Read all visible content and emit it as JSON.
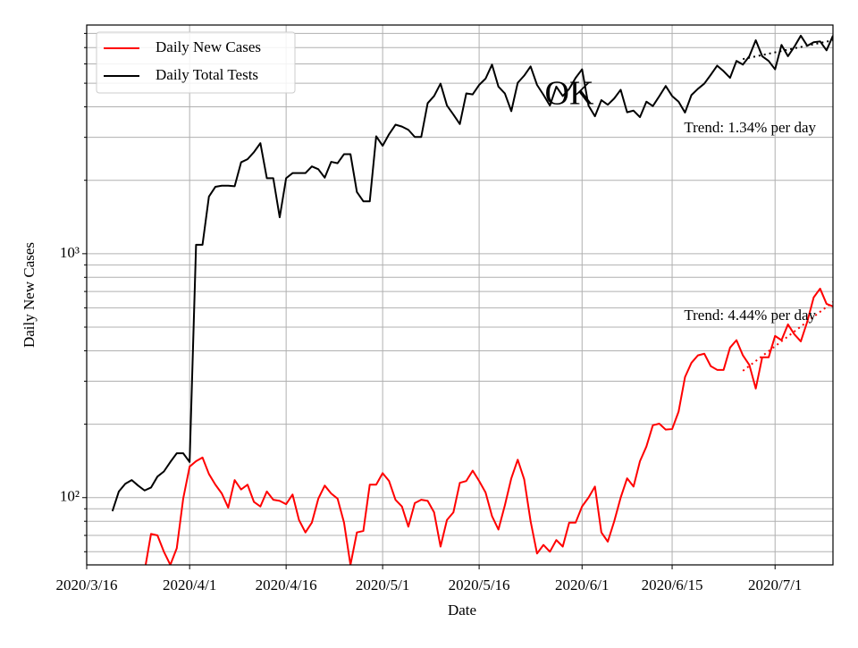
{
  "chart_data": {
    "type": "line",
    "title": "OK",
    "xlabel": "Date",
    "ylabel": "Daily New Cases",
    "yscale": "log",
    "grid": true,
    "legend_loc": "upper left",
    "xlim": [
      "2020/3/16",
      "2020/7/10"
    ],
    "xticks": [
      "2020/3/16",
      "2020/4/1",
      "2020/4/16",
      "2020/5/1",
      "2020/5/16",
      "2020/6/1",
      "2020/6/15",
      "2020/7/1"
    ],
    "ylim": [
      53,
      8660
    ],
    "yticks": [
      {
        "value": 100,
        "label": "10²"
      },
      {
        "value": 1000,
        "label": "10³"
      }
    ],
    "yticks_minor": [
      60,
      70,
      80,
      90,
      200,
      300,
      400,
      500,
      600,
      700,
      800,
      900,
      2000,
      3000,
      4000,
      5000,
      6000,
      7000,
      8000
    ],
    "x": [
      "2020/3/20",
      "2020/3/21",
      "2020/3/22",
      "2020/3/23",
      "2020/3/24",
      "2020/3/25",
      "2020/3/26",
      "2020/3/27",
      "2020/3/28",
      "2020/3/29",
      "2020/3/30",
      "2020/3/31",
      "2020/4/1",
      "2020/4/2",
      "2020/4/3",
      "2020/4/4",
      "2020/4/5",
      "2020/4/6",
      "2020/4/7",
      "2020/4/8",
      "2020/4/9",
      "2020/4/10",
      "2020/4/11",
      "2020/4/12",
      "2020/4/13",
      "2020/4/14",
      "2020/4/15",
      "2020/4/16",
      "2020/4/17",
      "2020/4/18",
      "2020/4/19",
      "2020/4/20",
      "2020/4/21",
      "2020/4/22",
      "2020/4/23",
      "2020/4/24",
      "2020/4/25",
      "2020/4/26",
      "2020/4/27",
      "2020/4/28",
      "2020/4/29",
      "2020/4/30",
      "2020/5/1",
      "2020/5/2",
      "2020/5/3",
      "2020/5/4",
      "2020/5/5",
      "2020/5/6",
      "2020/5/7",
      "2020/5/8",
      "2020/5/9",
      "2020/5/10",
      "2020/5/11",
      "2020/5/12",
      "2020/5/13",
      "2020/5/14",
      "2020/5/15",
      "2020/5/16",
      "2020/5/17",
      "2020/5/18",
      "2020/5/19",
      "2020/5/20",
      "2020/5/21",
      "2020/5/22",
      "2020/5/23",
      "2020/5/24",
      "2020/5/25",
      "2020/5/26",
      "2020/5/27",
      "2020/5/28",
      "2020/5/29",
      "2020/5/30",
      "2020/5/31",
      "2020/6/1",
      "2020/6/2",
      "2020/6/3",
      "2020/6/4",
      "2020/6/5",
      "2020/6/6",
      "2020/6/7",
      "2020/6/8",
      "2020/6/9",
      "2020/6/10",
      "2020/6/11",
      "2020/6/12",
      "2020/6/13",
      "2020/6/14",
      "2020/6/15",
      "2020/6/16",
      "2020/6/17",
      "2020/6/18",
      "2020/6/19",
      "2020/6/20",
      "2020/6/21",
      "2020/6/22",
      "2020/6/23",
      "2020/6/24",
      "2020/6/25",
      "2020/6/26",
      "2020/6/27",
      "2020/6/28",
      "2020/6/29",
      "2020/6/30",
      "2020/7/1",
      "2020/7/2",
      "2020/7/3",
      "2020/7/4",
      "2020/7/5",
      "2020/7/6",
      "2020/7/7",
      "2020/7/8",
      "2020/7/9",
      "2020/7/10"
    ],
    "series": [
      {
        "name": "Daily New Cases",
        "color": "#ff0000",
        "values": [
          null,
          null,
          null,
          null,
          null,
          50,
          71,
          70,
          60,
          53,
          62,
          99,
          134,
          141,
          146,
          125,
          113,
          104,
          91,
          118,
          108,
          113,
          96,
          92,
          106,
          98,
          97,
          94,
          103,
          81,
          72,
          79,
          99,
          112,
          104,
          99,
          79,
          53,
          72,
          73,
          113,
          113,
          126,
          117,
          98,
          92,
          76,
          95,
          98,
          97,
          87,
          63,
          81,
          87,
          115,
          117,
          129,
          117,
          105,
          84,
          74,
          93,
          120,
          143,
          119,
          80,
          59,
          64,
          60,
          67,
          63,
          79,
          79,
          92,
          100,
          111,
          72,
          66,
          80,
          100,
          120,
          111,
          141,
          162,
          198,
          201,
          190,
          191,
          225,
          312,
          357,
          383,
          389,
          346,
          334,
          334,
          412,
          442,
          383,
          350,
          280,
          376,
          376,
          460,
          442,
          513,
          467,
          437,
          526,
          662,
          719,
          623,
          608
        ]
      },
      {
        "name": "Daily Total Tests",
        "color": "#000000",
        "values": [
          88,
          106,
          114,
          118,
          112,
          107,
          110,
          122,
          128,
          140,
          152,
          152,
          140,
          1088,
          1088,
          1715,
          1880,
          1900,
          1900,
          1890,
          2370,
          2440,
          2610,
          2840,
          2040,
          2040,
          1410,
          2040,
          2140,
          2140,
          2140,
          2280,
          2220,
          2050,
          2380,
          2350,
          2560,
          2560,
          1790,
          1640,
          1640,
          3030,
          2770,
          3090,
          3380,
          3320,
          3220,
          3010,
          3010,
          4140,
          4430,
          4980,
          4050,
          3720,
          3400,
          4540,
          4500,
          4920,
          5220,
          5960,
          4840,
          4540,
          3840,
          5020,
          5370,
          5860,
          4920,
          4480,
          4050,
          4840,
          4430,
          4740,
          5260,
          5700,
          4050,
          3660,
          4260,
          4080,
          4330,
          4700,
          3800,
          3860,
          3630,
          4200,
          4030,
          4420,
          4870,
          4430,
          4200,
          3790,
          4470,
          4740,
          4980,
          5410,
          5900,
          5600,
          5260,
          6170,
          5960,
          6450,
          7500,
          6450,
          6170,
          5700,
          7180,
          6450,
          7060,
          7830,
          7120,
          7360,
          7420,
          6820,
          7830
        ]
      }
    ],
    "trend_lines": [
      {
        "color": "#000000",
        "x": [
          "2020/6/26",
          "2020/7/10"
        ],
        "values": [
          6280,
          7500
        ]
      },
      {
        "color": "#ff0000",
        "x": [
          "2020/6/26",
          "2020/7/10"
        ],
        "values": [
          331,
          634
        ]
      }
    ],
    "annotations": [
      "Trend: 1.34% per day",
      "Trend: 4.44% per day"
    ]
  }
}
